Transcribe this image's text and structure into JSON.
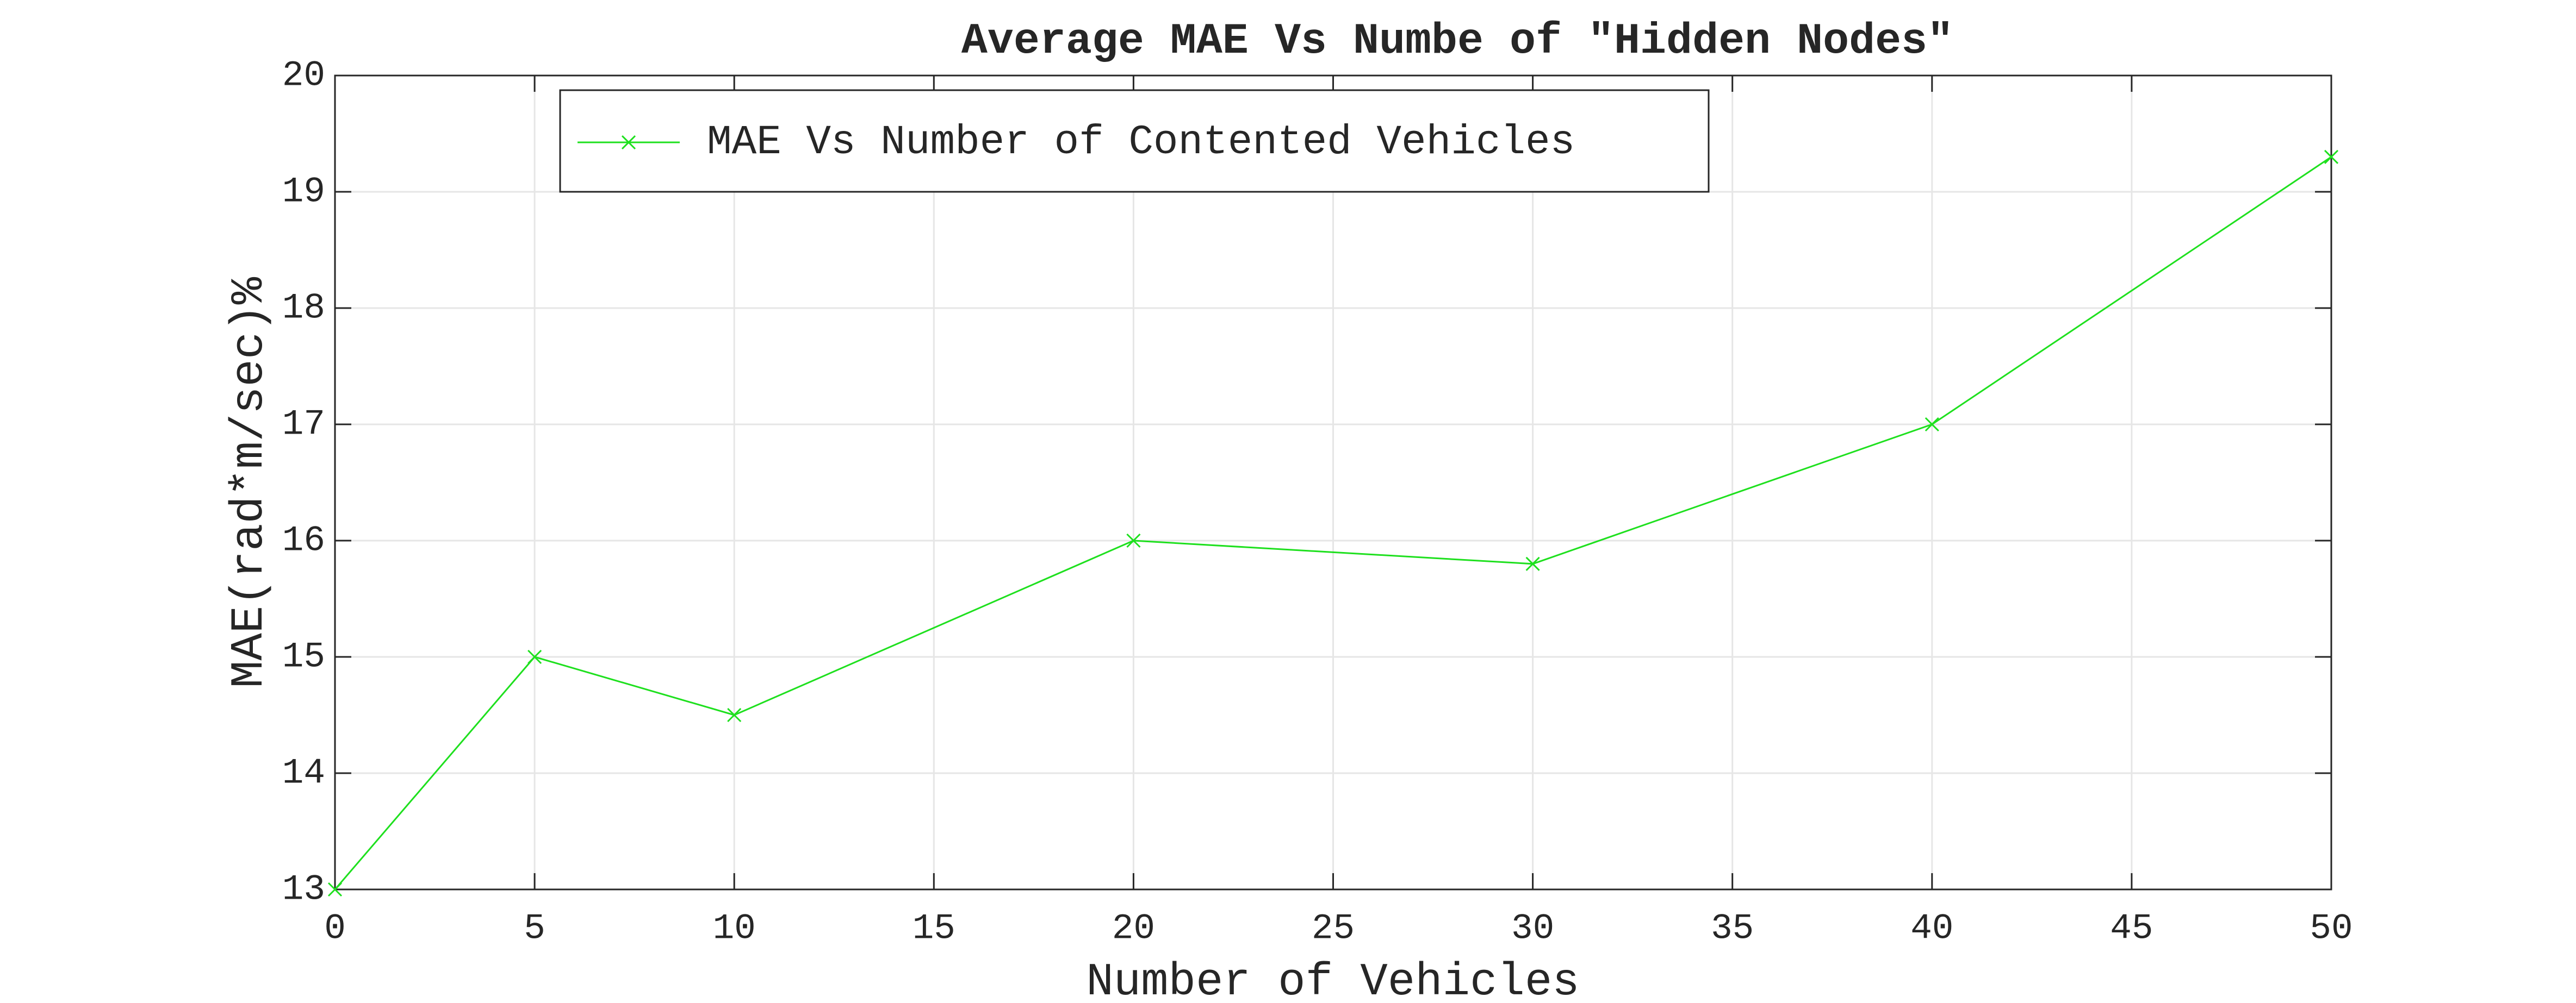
{
  "chart_data": {
    "type": "line",
    "title": "Average MAE Vs Numbe of \"Hidden Nodes\"",
    "x_label": "Number of Vehicles",
    "y_label": "MAE(rad*m/sec)%",
    "x": [
      0,
      5,
      10,
      20,
      30,
      40,
      50
    ],
    "series": [
      {
        "name": "MAE Vs Number of Contented Vehicles",
        "color": "#1ee01e",
        "values": [
          13,
          15,
          14.5,
          16,
          15.8,
          17,
          19.3
        ]
      }
    ],
    "xlim": [
      0,
      50
    ],
    "xticks": [
      0,
      5,
      10,
      15,
      20,
      25,
      30,
      35,
      40,
      45,
      50
    ],
    "ylim": [
      13,
      20
    ],
    "yticks": [
      13,
      14,
      15,
      16,
      17,
      18,
      19,
      20
    ],
    "grid": true,
    "legend": "top-left"
  }
}
